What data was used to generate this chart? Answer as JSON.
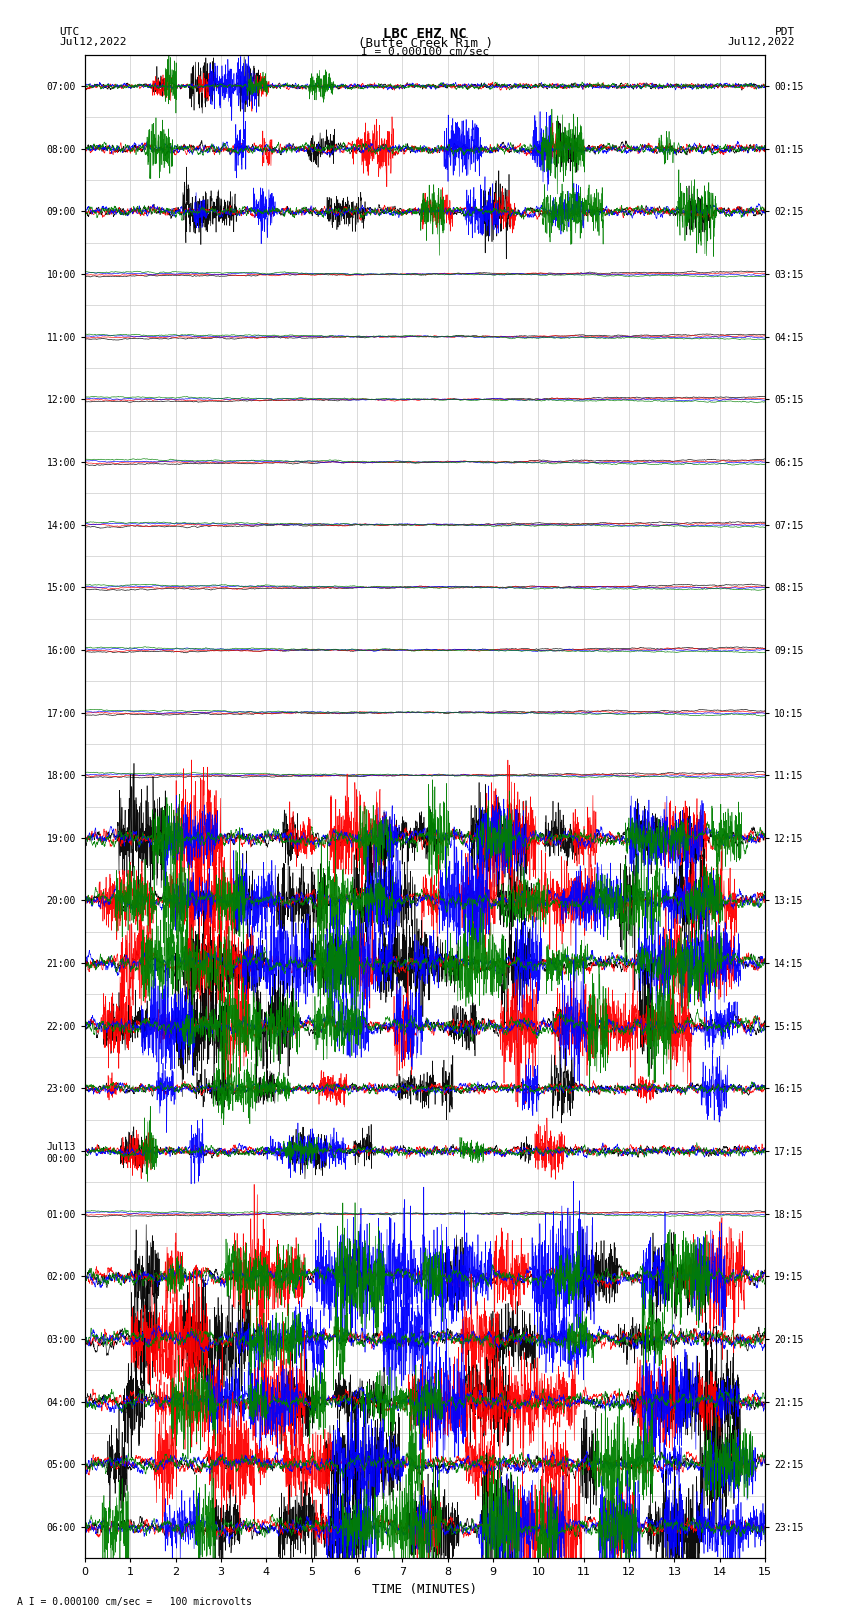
{
  "title_line1": "LBC EHZ NC",
  "title_line2": "(Butte Creek Rim )",
  "scale_label": "I = 0.000100 cm/sec",
  "bottom_label": "A I = 0.000100 cm/sec =   100 microvolts",
  "xlabel": "TIME (MINUTES)",
  "left_date": "Jul12,2022",
  "right_date": "Jul12,2022",
  "left_tz": "UTC",
  "right_tz": "PDT",
  "utc_labels": [
    "07:00",
    "08:00",
    "09:00",
    "10:00",
    "11:00",
    "12:00",
    "13:00",
    "14:00",
    "15:00",
    "16:00",
    "17:00",
    "18:00",
    "19:00",
    "20:00",
    "21:00",
    "22:00",
    "23:00",
    "Jul13\n00:00",
    "01:00",
    "02:00",
    "03:00",
    "04:00",
    "05:00",
    "06:00"
  ],
  "pdt_labels": [
    "00:15",
    "01:15",
    "02:15",
    "03:15",
    "04:15",
    "05:15",
    "06:15",
    "07:15",
    "08:15",
    "09:15",
    "10:15",
    "11:15",
    "12:15",
    "13:15",
    "14:15",
    "15:15",
    "16:15",
    "17:15",
    "18:15",
    "19:15",
    "20:15",
    "21:15",
    "22:15",
    "23:15"
  ],
  "n_rows": 24,
  "x_max": 15,
  "bg_color": "#ffffff",
  "grid_color": "#cccccc"
}
